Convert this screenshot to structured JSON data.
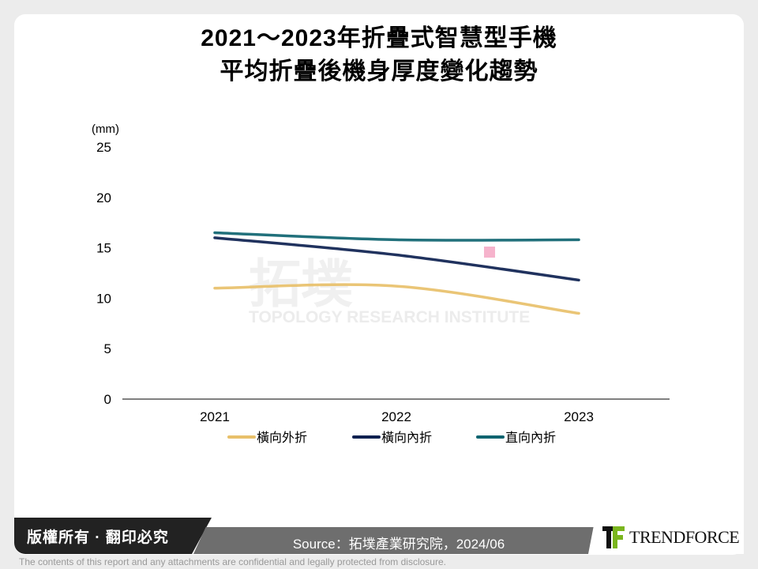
{
  "chart_data": {
    "type": "line",
    "title": "2021～2023年折疊式智慧型手機\n平均折疊後機身厚度變化趨勢",
    "title_lines": [
      "2021～2023年折疊式智慧型手機",
      "平均折疊後機身厚度變化趨勢"
    ],
    "ylabel": "(mm)",
    "xlabel": "",
    "categories": [
      "2021",
      "2022",
      "2023"
    ],
    "ylim": [
      0,
      25
    ],
    "yticks": [
      0,
      5,
      10,
      15,
      20,
      25
    ],
    "grid": false,
    "legend_position": "bottom",
    "smooth": true,
    "series": [
      {
        "name": "橫向外折",
        "values": [
          11.0,
          11.2,
          8.5
        ],
        "color": "#e8c06a"
      },
      {
        "name": "橫向內折",
        "values": [
          16.0,
          14.3,
          11.8
        ],
        "color": "#0d2150"
      },
      {
        "name": "直向內折",
        "values": [
          16.5,
          15.8,
          15.8
        ],
        "color": "#0e6470"
      }
    ]
  },
  "watermark": {
    "text_cn": "拓墣",
    "text_en": "TOPOLOGY RESEARCH INSTITUTE"
  },
  "footer": {
    "copyright": "版權所有 · 翻印必究",
    "source": "Source：拓墣產業研究院，2024/06",
    "brand": "TrendForce",
    "disclaimer": "The contents of this report and any attachments are confidential and legally protected from disclosure."
  }
}
